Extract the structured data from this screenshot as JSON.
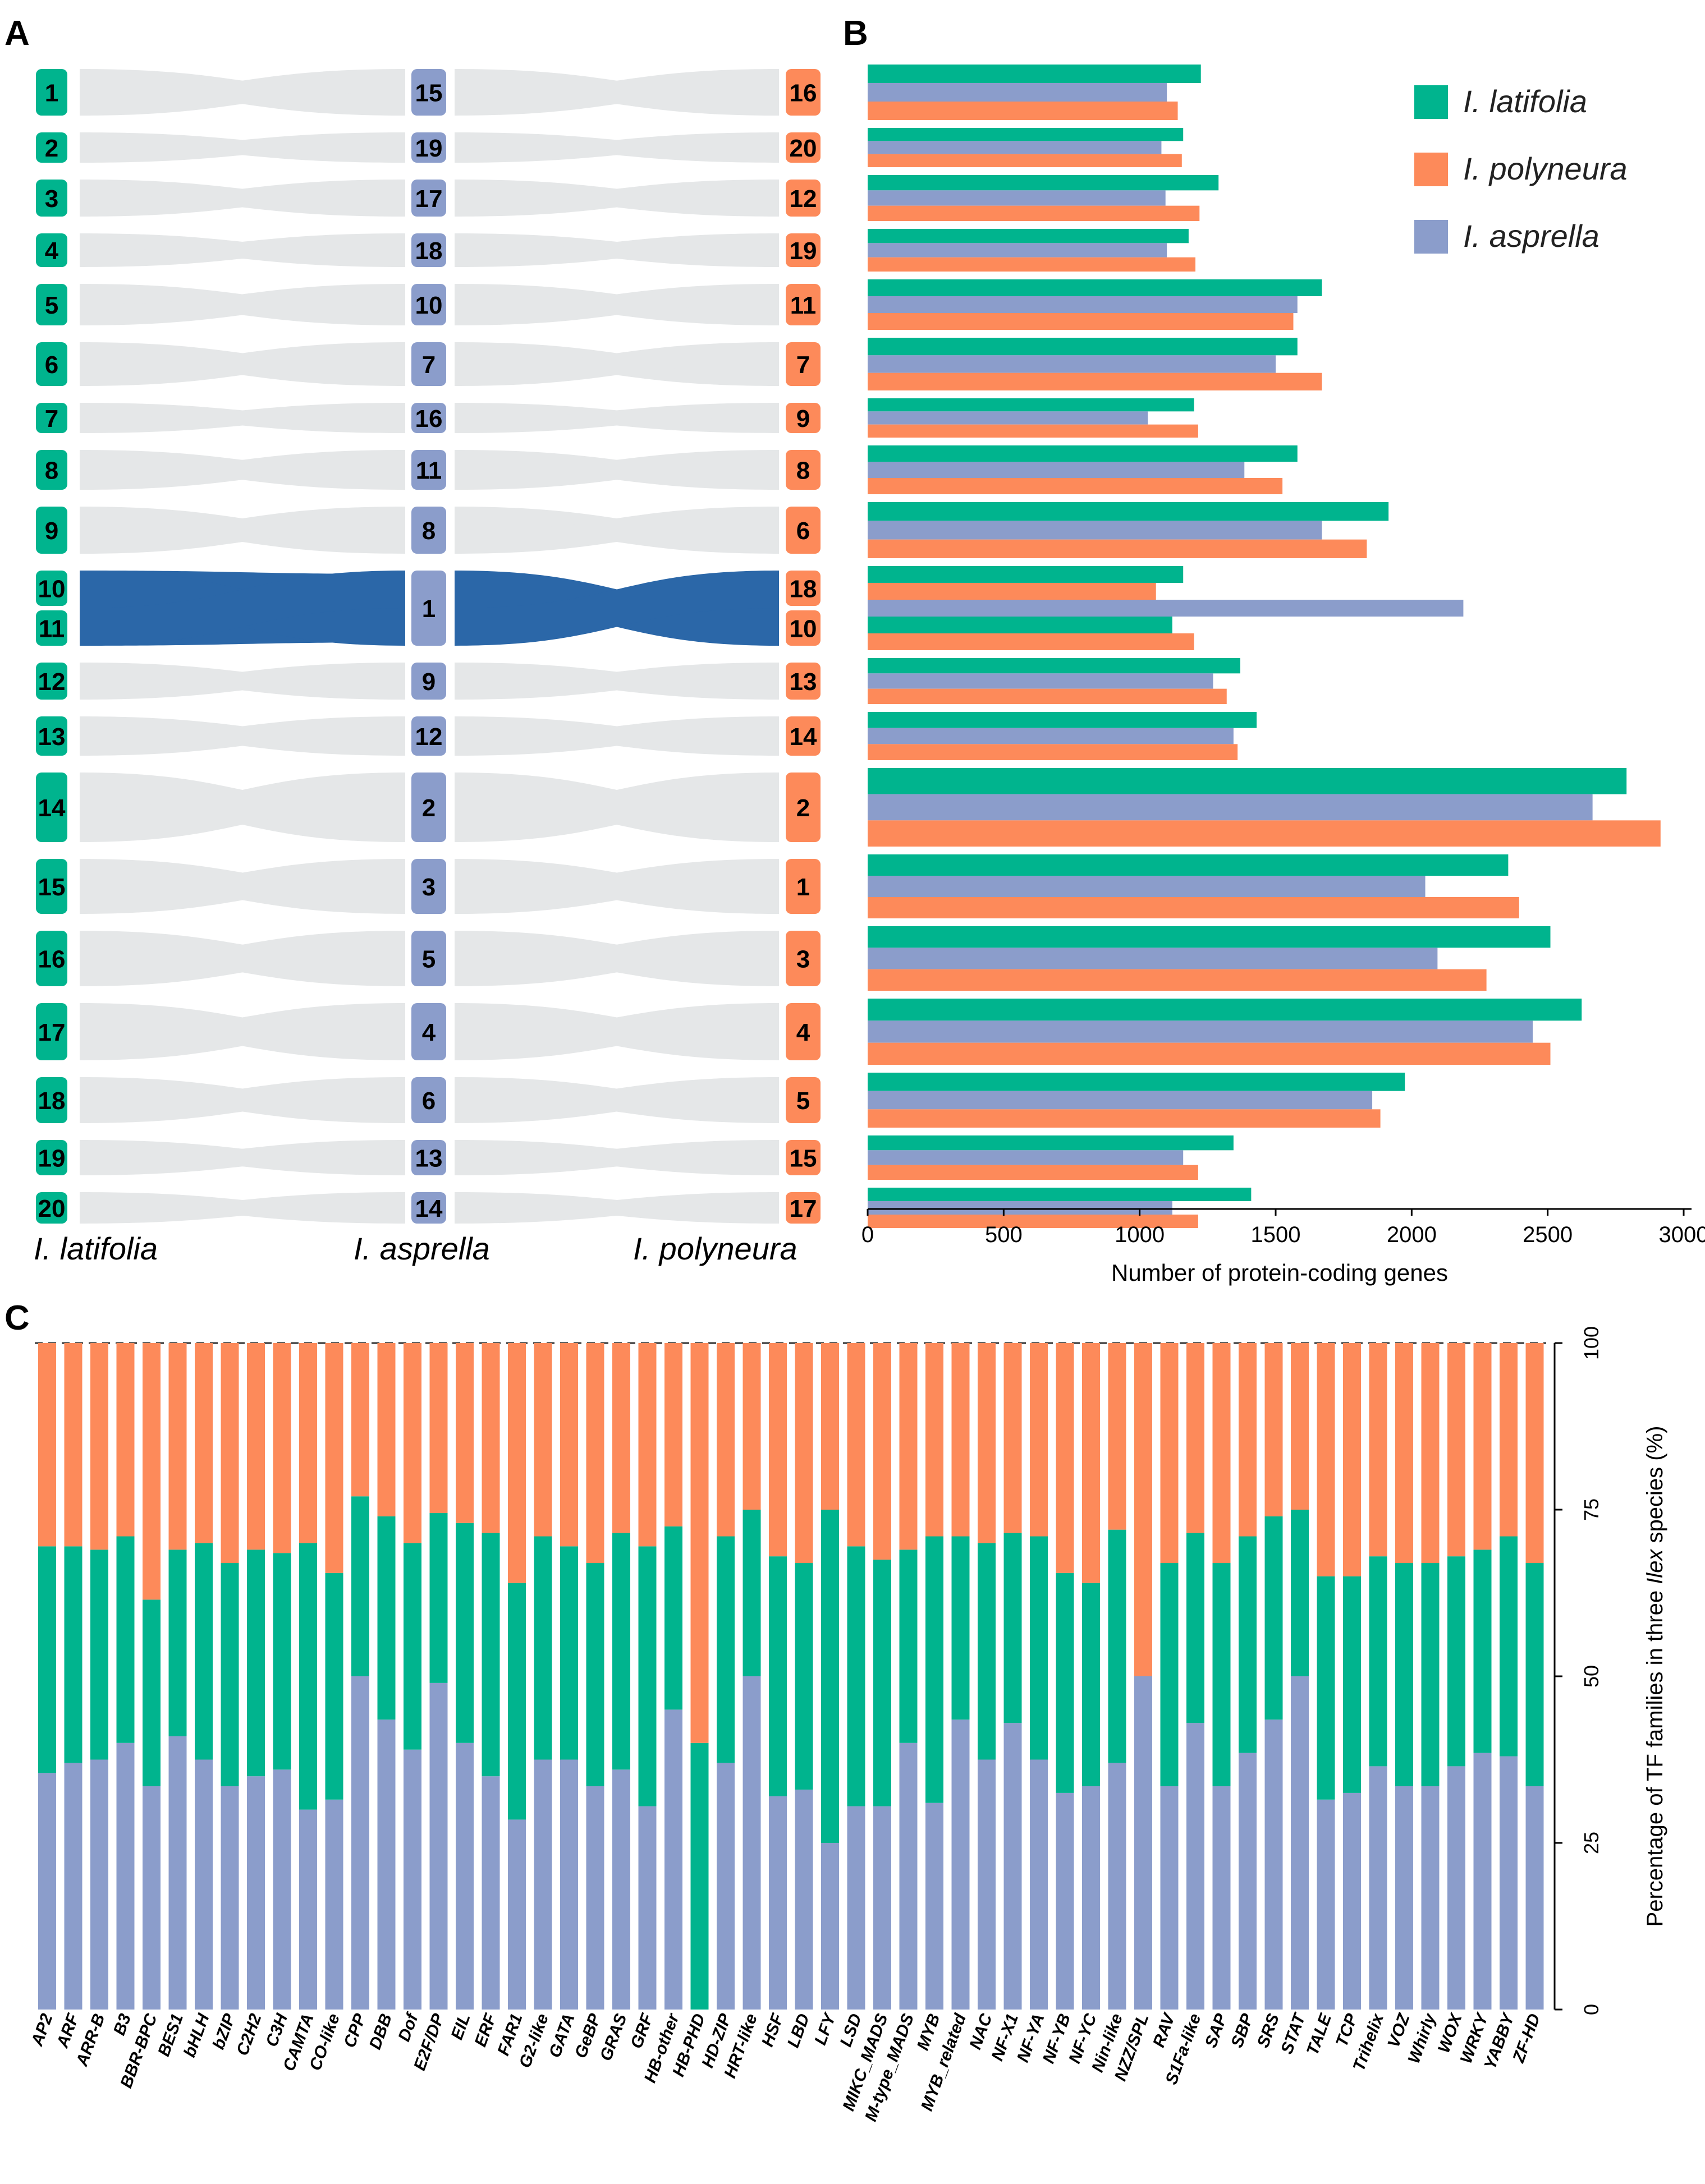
{
  "colors": {
    "latifolia": "#00B48E",
    "polyneura": "#FD8A5A",
    "asprella": "#8B9DCB",
    "ribbon": "#E5E7E8",
    "highlight": "#2B67A8"
  },
  "panels": {
    "a": "A",
    "b": "B",
    "c": "C"
  },
  "panel_a": {
    "species": {
      "left": "I. latifolia",
      "middle": "I. asprella",
      "right": "I. polyneura"
    },
    "rows": [
      {
        "latifolia": [
          "1"
        ],
        "asprella": "15",
        "polyneura": [
          "16"
        ]
      },
      {
        "latifolia": [
          "2"
        ],
        "asprella": "19",
        "polyneura": [
          "20"
        ]
      },
      {
        "latifolia": [
          "3"
        ],
        "asprella": "17",
        "polyneura": [
          "12"
        ]
      },
      {
        "latifolia": [
          "4"
        ],
        "asprella": "18",
        "polyneura": [
          "19"
        ]
      },
      {
        "latifolia": [
          "5"
        ],
        "asprella": "10",
        "polyneura": [
          "11"
        ]
      },
      {
        "latifolia": [
          "6"
        ],
        "asprella": "7",
        "polyneura": [
          "7"
        ]
      },
      {
        "latifolia": [
          "7"
        ],
        "asprella": "16",
        "polyneura": [
          "9"
        ]
      },
      {
        "latifolia": [
          "8"
        ],
        "asprella": "11",
        "polyneura": [
          "8"
        ]
      },
      {
        "latifolia": [
          "9"
        ],
        "asprella": "8",
        "polyneura": [
          "6"
        ]
      },
      {
        "latifolia": [
          "10",
          "11"
        ],
        "asprella": "1",
        "polyneura": [
          "18",
          "10"
        ],
        "highlight": true
      },
      {
        "latifolia": [
          "12"
        ],
        "asprella": "9",
        "polyneura": [
          "13"
        ]
      },
      {
        "latifolia": [
          "13"
        ],
        "asprella": "12",
        "polyneura": [
          "14"
        ]
      },
      {
        "latifolia": [
          "14"
        ],
        "asprella": "2",
        "polyneura": [
          "2"
        ]
      },
      {
        "latifolia": [
          "15"
        ],
        "asprella": "3",
        "polyneura": [
          "1"
        ]
      },
      {
        "latifolia": [
          "16"
        ],
        "asprella": "5",
        "polyneura": [
          "3"
        ]
      },
      {
        "latifolia": [
          "17"
        ],
        "asprella": "4",
        "polyneura": [
          "4"
        ]
      },
      {
        "latifolia": [
          "18"
        ],
        "asprella": "6",
        "polyneura": [
          "5"
        ]
      },
      {
        "latifolia": [
          "19"
        ],
        "asprella": "13",
        "polyneura": [
          "15"
        ]
      },
      {
        "latifolia": [
          "20"
        ],
        "asprella": "14",
        "polyneura": [
          "17"
        ]
      }
    ]
  },
  "chart_data": [
    {
      "type": "bar",
      "orientation": "horizontal",
      "xlabel": "Number of protein-coding genes",
      "xlim": [
        0,
        3000
      ],
      "xticks": [
        "0",
        "500",
        "1000",
        "1500",
        "2000",
        "2500",
        "3000"
      ],
      "legend": [
        "I. latifolia",
        "I. polyneura",
        "I. asprella"
      ],
      "legend_position": "top-right",
      "groups": [
        {
          "label": "16",
          "bars": [
            [
              "latifolia",
              1225
            ],
            [
              "asprella",
              1100
            ],
            [
              "polyneura",
              1140
            ]
          ]
        },
        {
          "label": "20",
          "bars": [
            [
              "latifolia",
              1160
            ],
            [
              "asprella",
              1080
            ],
            [
              "polyneura",
              1155
            ]
          ]
        },
        {
          "label": "12",
          "bars": [
            [
              "latifolia",
              1290
            ],
            [
              "asprella",
              1095
            ],
            [
              "polyneura",
              1220
            ]
          ]
        },
        {
          "label": "19",
          "bars": [
            [
              "latifolia",
              1180
            ],
            [
              "asprella",
              1100
            ],
            [
              "polyneura",
              1205
            ]
          ]
        },
        {
          "label": "11",
          "bars": [
            [
              "latifolia",
              1670
            ],
            [
              "asprella",
              1580
            ],
            [
              "polyneura",
              1565
            ]
          ]
        },
        {
          "label": "7",
          "bars": [
            [
              "latifolia",
              1580
            ],
            [
              "asprella",
              1500
            ],
            [
              "polyneura",
              1670
            ]
          ]
        },
        {
          "label": "9",
          "bars": [
            [
              "latifolia",
              1200
            ],
            [
              "asprella",
              1030
            ],
            [
              "polyneura",
              1215
            ]
          ]
        },
        {
          "label": "8",
          "bars": [
            [
              "latifolia",
              1580
            ],
            [
              "asprella",
              1385
            ],
            [
              "polyneura",
              1525
            ]
          ]
        },
        {
          "label": "6",
          "bars": [
            [
              "latifolia",
              1915
            ],
            [
              "asprella",
              1670
            ],
            [
              "polyneura",
              1835
            ]
          ]
        },
        {
          "label": "18",
          "bars": [
            [
              "latifolia",
              1160
            ],
            [
              "polyneura",
              1060
            ],
            [
              "asprella",
              2190
            ]
          ]
        },
        {
          "label": "10",
          "bars": [
            [
              "latifolia",
              1120
            ],
            [
              "polyneura",
              1200
            ]
          ]
        },
        {
          "label": "13",
          "bars": [
            [
              "latifolia",
              1370
            ],
            [
              "asprella",
              1270
            ],
            [
              "polyneura",
              1320
            ]
          ]
        },
        {
          "label": "14",
          "bars": [
            [
              "latifolia",
              1430
            ],
            [
              "asprella",
              1345
            ],
            [
              "polyneura",
              1360
            ]
          ]
        },
        {
          "label": "2",
          "bars": [
            [
              "latifolia",
              2790
            ],
            [
              "asprella",
              2665
            ],
            [
              "polyneura",
              2915
            ]
          ]
        },
        {
          "label": "1",
          "bars": [
            [
              "latifolia",
              2355
            ],
            [
              "asprella",
              2050
            ],
            [
              "polyneura",
              2395
            ]
          ]
        },
        {
          "label": "3",
          "bars": [
            [
              "latifolia",
              2510
            ],
            [
              "asprella",
              2095
            ],
            [
              "polyneura",
              2275
            ]
          ]
        },
        {
          "label": "4",
          "bars": [
            [
              "latifolia",
              2625
            ],
            [
              "asprella",
              2445
            ],
            [
              "polyneura",
              2510
            ]
          ]
        },
        {
          "label": "5",
          "bars": [
            [
              "latifolia",
              1975
            ],
            [
              "asprella",
              1855
            ],
            [
              "polyneura",
              1885
            ]
          ]
        },
        {
          "label": "15",
          "bars": [
            [
              "latifolia",
              1345
            ],
            [
              "asprella",
              1160
            ],
            [
              "polyneura",
              1215
            ]
          ]
        },
        {
          "label": "17",
          "bars": [
            [
              "latifolia",
              1410
            ],
            [
              "asprella",
              1120
            ],
            [
              "polyneura",
              1215
            ]
          ]
        }
      ]
    },
    {
      "type": "bar",
      "stacked": true,
      "ylabel_parts": [
        "Percentage of  TF families in three ",
        "Ilex",
        " species (%)"
      ],
      "ylim": [
        0,
        100
      ],
      "yticks": [
        "0",
        "25",
        "50",
        "75",
        "100"
      ],
      "stack_order": [
        "asprella",
        "latifolia",
        "polyneura"
      ],
      "categories": [
        "AP2",
        "ARF",
        "ARR-B",
        "B3",
        "BBR-BPC",
        "BES1",
        "bHLH",
        "bZIP",
        "C2H2",
        "C3H",
        "CAMTA",
        "CO-like",
        "CPP",
        "DBB",
        "Dof",
        "E2F/DP",
        "EIL",
        "ERF",
        "FAR1",
        "G2-like",
        "GATA",
        "GeBP",
        "GRAS",
        "GRF",
        "HB-other",
        "HB-PHD",
        "HD-ZIP",
        "HRT-like",
        "HSF",
        "LBD",
        "LFY",
        "LSD",
        "MIKC_MADS",
        "M-type_MADS",
        "MYB",
        "MYB_related",
        "NAC",
        "NF-X1",
        "NF-YA",
        "NF-YB",
        "NF-YC",
        "Nin-like",
        "NZZ/SPL",
        "RAV",
        "S1Fa-like",
        "SAP",
        "SBP",
        "SRS",
        "STAT",
        "TALE",
        "TCP",
        "Trihelix",
        "VOZ",
        "Whirly",
        "WOX",
        "WRKY",
        "YABBY",
        "ZF-HD"
      ],
      "series": [
        {
          "name": "I. asprella",
          "values": [
            35.5,
            37,
            37.5,
            40,
            33.5,
            41,
            37.5,
            33.5,
            35,
            36,
            30,
            31.5,
            50,
            43.5,
            39,
            49,
            40,
            35,
            28.5,
            37.5,
            37.5,
            33.5,
            36,
            30.5,
            45,
            0,
            37,
            50,
            32,
            33,
            25,
            30.5,
            30.5,
            40,
            31,
            43.5,
            37.5,
            43,
            37.5,
            32.5,
            33.5,
            37,
            50,
            33.5,
            43,
            33.5,
            38.5,
            43.5,
            50,
            31.5,
            32.5,
            36.5,
            33.5,
            33.5,
            36.5,
            38.5,
            38,
            33.5
          ]
        },
        {
          "name": "I. latifolia",
          "values": [
            34,
            32.5,
            31.5,
            31,
            28,
            28,
            32.5,
            33.5,
            34,
            32.5,
            40,
            34,
            27,
            30.5,
            31,
            25.5,
            33,
            36.5,
            35.5,
            33.5,
            32,
            33.5,
            35.5,
            39,
            27.5,
            40,
            34,
            25,
            36,
            34,
            50,
            39,
            37,
            29,
            40,
            27.5,
            32.5,
            28.5,
            33.5,
            33,
            30.5,
            35,
            0,
            33.5,
            28.5,
            33.5,
            32.5,
            30.5,
            25,
            33.5,
            32.5,
            31.5,
            33.5,
            33.5,
            31.5,
            30.5,
            33,
            33.5
          ]
        },
        {
          "name": "I. polyneura",
          "values": [
            30.5,
            30.5,
            31,
            29,
            38.5,
            31,
            30,
            33,
            31,
            31.5,
            30,
            34.5,
            23,
            26,
            30,
            25.5,
            27,
            28.5,
            36,
            29,
            30.5,
            33,
            28.5,
            30.5,
            27.5,
            60,
            29,
            25,
            32,
            33,
            25,
            30.5,
            32.5,
            31,
            29,
            29,
            30,
            28.5,
            29,
            34.5,
            36,
            28,
            50,
            33,
            28.5,
            33,
            29,
            26,
            25,
            35,
            35,
            32,
            33,
            33,
            32,
            31,
            29,
            33
          ]
        }
      ]
    }
  ]
}
